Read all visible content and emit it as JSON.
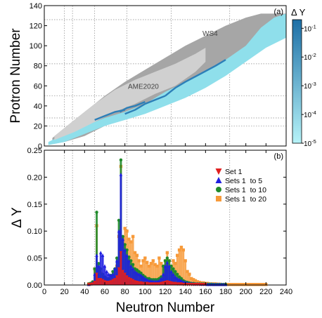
{
  "chart_data": [
    {
      "type": "heatmap",
      "panel_label": "(a)",
      "ylabel": "Protron Number",
      "xlim": [
        0,
        240
      ],
      "ylim": [
        0,
        140
      ],
      "ytick_labels": [
        "0",
        "20",
        "40",
        "60",
        "80",
        "100",
        "120",
        "140"
      ],
      "grid": "dotted",
      "region_labels": [
        "WS4",
        "AME2020"
      ],
      "colorbar": {
        "title": "Δ Y",
        "scale": "log",
        "range": [
          1e-05,
          0.2
        ],
        "tick_labels": [
          "10-1",
          "10-2",
          "10-3",
          "10-4",
          "10-5"
        ],
        "colors": [
          "#b6f3f8",
          "#1d6fa6"
        ]
      },
      "region_colors": {
        "WS4": "#a6a6a6",
        "AME2020": "#d0d0d0",
        "nonzero_dY": "#8fdfeb",
        "large_dY": "#2c7fb8"
      },
      "regions": {
        "WS4_band": {
          "upper": [
            [
              8,
              8
            ],
            [
              20,
              18
            ],
            [
              40,
              34
            ],
            [
              60,
              50
            ],
            [
              80,
              64
            ],
            [
              100,
              76
            ],
            [
              120,
              88
            ],
            [
              140,
              100
            ],
            [
              160,
              110
            ],
            [
              180,
              120
            ],
            [
              200,
              128
            ],
            [
              215,
              132
            ],
            [
              240,
              132
            ]
          ],
          "lower": [
            [
              8,
              2
            ],
            [
              20,
              4
            ],
            [
              40,
              10
            ],
            [
              60,
              20
            ],
            [
              80,
              28
            ],
            [
              100,
              36
            ],
            [
              120,
              46
            ],
            [
              140,
              56
            ],
            [
              160,
              66
            ],
            [
              180,
              78
            ],
            [
              200,
              92
            ],
            [
              220,
              106
            ],
            [
              240,
              118
            ]
          ]
        },
        "AME2020_band": {
          "upper": [
            [
              10,
              10
            ],
            [
              30,
              26
            ],
            [
              50,
              42
            ],
            [
              70,
              56
            ],
            [
              90,
              66
            ],
            [
              110,
              74
            ],
            [
              130,
              82
            ],
            [
              150,
              92
            ],
            [
              160,
              98
            ]
          ],
          "lower": [
            [
              10,
              6
            ],
            [
              30,
              14
            ],
            [
              50,
              24
            ],
            [
              70,
              34
            ],
            [
              90,
              42
            ],
            [
              110,
              52
            ],
            [
              130,
              60
            ],
            [
              150,
              74
            ],
            [
              160,
              84
            ]
          ]
        },
        "sensitivity_band": {
          "upper": [
            [
              4,
              4
            ],
            [
              20,
              12
            ],
            [
              40,
              20
            ],
            [
              60,
              28
            ],
            [
              80,
              34
            ],
            [
              100,
              42
            ],
            [
              120,
              54
            ],
            [
              140,
              64
            ],
            [
              160,
              74
            ],
            [
              180,
              86
            ],
            [
              200,
              100
            ],
            [
              215,
              118
            ],
            [
              228,
              128
            ],
            [
              240,
              132
            ]
          ],
          "lower": [
            [
              4,
              1
            ],
            [
              20,
              4
            ],
            [
              40,
              12
            ],
            [
              60,
              20
            ],
            [
              80,
              26
            ],
            [
              100,
              32
            ],
            [
              120,
              40
            ],
            [
              140,
              48
            ],
            [
              160,
              58
            ],
            [
              180,
              70
            ],
            [
              200,
              84
            ],
            [
              220,
              98
            ],
            [
              240,
              108
            ]
          ]
        },
        "high_sensitivity_segments": [
          [
            [
              50,
              26
            ],
            [
              60,
              30
            ],
            [
              70,
              34
            ],
            [
              80,
              36
            ]
          ],
          [
            [
              75,
              34
            ],
            [
              82,
              38
            ],
            [
              90,
              40
            ],
            [
              100,
              44
            ]
          ],
          [
            [
              80,
              32
            ],
            [
              90,
              36
            ],
            [
              100,
              42
            ],
            [
              110,
              46
            ],
            [
              120,
              50
            ]
          ],
          [
            [
              120,
              50
            ],
            [
              130,
              58
            ],
            [
              140,
              64
            ],
            [
              155,
              72
            ],
            [
              170,
              80
            ],
            [
              180,
              86
            ]
          ]
        ]
      }
    },
    {
      "type": "bar",
      "panel_label": "(b)",
      "xlabel": "Neutron Number",
      "ylabel": "Δ Y",
      "xlim": [
        0,
        240
      ],
      "ylim": [
        0,
        0.25
      ],
      "xtick_labels": [
        "0",
        "20",
        "40",
        "60",
        "80",
        "100",
        "120",
        "140",
        "160",
        "180",
        "200",
        "220",
        "240"
      ],
      "ytick_labels": [
        "0.00",
        "0.05",
        "0.10",
        "0.15",
        "0.20",
        "0.25"
      ],
      "grid": "dotted",
      "legend_position": "top-right",
      "series": [
        {
          "name": "Sets 1  to 20",
          "color": "#f79a3a",
          "marker": "square",
          "x": [
            44,
            46,
            48,
            50,
            52,
            54,
            56,
            58,
            60,
            62,
            64,
            66,
            68,
            70,
            72,
            74,
            76,
            78,
            80,
            82,
            84,
            86,
            88,
            90,
            92,
            94,
            96,
            98,
            100,
            102,
            104,
            106,
            108,
            110,
            112,
            114,
            116,
            118,
            120,
            122,
            124,
            126,
            128,
            130,
            132,
            134,
            136,
            138,
            140,
            142,
            144,
            146,
            148,
            150,
            152,
            154,
            156,
            158,
            160,
            162,
            164,
            166,
            168,
            170,
            172,
            174,
            176,
            178,
            180,
            182,
            184,
            186,
            188,
            190,
            192,
            194,
            196,
            198,
            200,
            202,
            204,
            206,
            208,
            210,
            212,
            214,
            216,
            218,
            220
          ],
          "values": [
            0.002,
            0.003,
            0.005,
            0.03,
            0.11,
            0.028,
            0.022,
            0.015,
            0.012,
            0.01,
            0.008,
            0.007,
            0.012,
            0.02,
            0.035,
            0.09,
            0.22,
            0.085,
            0.105,
            0.1,
            0.085,
            0.08,
            0.09,
            0.06,
            0.055,
            0.045,
            0.035,
            0.045,
            0.05,
            0.042,
            0.035,
            0.04,
            0.045,
            0.038,
            0.035,
            0.05,
            0.04,
            0.035,
            0.045,
            0.06,
            0.045,
            0.035,
            0.045,
            0.04,
            0.055,
            0.065,
            0.07,
            0.065,
            0.045,
            0.025,
            0.02,
            0.012,
            0.01,
            0.008,
            0.006,
            0.005,
            0.004,
            0.004,
            0.003,
            0.003,
            0.002,
            0.002,
            0.002,
            0.002,
            0.0015,
            0.0015,
            0.001,
            0.001,
            0.001,
            0.001,
            0.001,
            0.001,
            0.001,
            0.001,
            0.001,
            0.001,
            0.001,
            0.001,
            0.001,
            0.001,
            0.001,
            0.001,
            0.001,
            0.001,
            0.001,
            0.001,
            0.001,
            0.001,
            0.001
          ]
        },
        {
          "name": "Sets 1  to 10",
          "color": "#1f8a2a",
          "marker": "circle",
          "x": [
            44,
            46,
            48,
            50,
            52,
            54,
            56,
            58,
            60,
            62,
            64,
            66,
            68,
            70,
            72,
            74,
            76,
            78,
            80,
            82,
            84,
            86,
            88,
            90,
            92,
            94,
            96,
            98,
            100,
            102,
            104,
            106,
            108,
            110,
            112,
            114,
            116,
            118,
            120,
            122,
            124,
            126,
            128,
            130,
            132,
            134,
            136,
            138,
            140,
            142,
            144,
            146,
            148,
            150,
            152,
            154,
            156,
            158,
            160,
            162,
            164,
            166,
            168,
            170,
            172,
            174,
            176,
            178,
            180
          ],
          "values": [
            0.002,
            0.003,
            0.006,
            0.03,
            0.135,
            0.04,
            0.03,
            0.02,
            0.015,
            0.012,
            0.012,
            0.018,
            0.025,
            0.03,
            0.05,
            0.12,
            0.232,
            0.09,
            0.075,
            0.065,
            0.052,
            0.045,
            0.038,
            0.03,
            0.028,
            0.025,
            0.022,
            0.018,
            0.015,
            0.012,
            0.012,
            0.01,
            0.01,
            0.01,
            0.01,
            0.012,
            0.015,
            0.035,
            0.045,
            0.05,
            0.045,
            0.035,
            0.03,
            0.025,
            0.02,
            0.015,
            0.012,
            0.008,
            0.006,
            0.005,
            0.004,
            0.003,
            0.003,
            0.002,
            0.002,
            0.002,
            0.002,
            0.002,
            0.002,
            0.0015,
            0.0015,
            0.0015,
            0.001,
            0.001,
            0.001,
            0.001,
            0.001,
            0.001,
            0.001
          ]
        },
        {
          "name": "Sets 1  to 5",
          "color": "#1f1fe0",
          "marker": "triangle-up",
          "x": [
            44,
            46,
            48,
            50,
            52,
            54,
            56,
            58,
            60,
            62,
            64,
            66,
            68,
            70,
            72,
            74,
            76,
            78,
            80,
            82,
            84,
            86,
            88,
            90,
            92,
            94,
            96,
            98,
            100,
            102,
            104,
            106,
            108,
            110,
            112,
            114,
            116,
            118,
            120,
            122,
            124,
            126,
            128,
            130,
            132,
            134,
            136,
            138,
            140,
            142,
            144,
            146,
            148,
            150,
            152,
            154,
            156,
            158,
            160,
            162,
            164,
            166,
            168,
            170,
            172,
            174,
            176,
            178,
            180
          ],
          "values": [
            0.001,
            0.002,
            0.004,
            0.02,
            0.055,
            0.035,
            0.06,
            0.055,
            0.035,
            0.025,
            0.02,
            0.018,
            0.02,
            0.03,
            0.045,
            0.1,
            0.205,
            0.085,
            0.065,
            0.055,
            0.045,
            0.035,
            0.03,
            0.025,
            0.022,
            0.02,
            0.018,
            0.015,
            0.012,
            0.01,
            0.008,
            0.008,
            0.007,
            0.007,
            0.007,
            0.008,
            0.012,
            0.02,
            0.035,
            0.042,
            0.035,
            0.025,
            0.02,
            0.015,
            0.012,
            0.01,
            0.008,
            0.006,
            0.005,
            0.004,
            0.003,
            0.003,
            0.002,
            0.002,
            0.002,
            0.002,
            0.0015,
            0.0015,
            0.0015,
            0.001,
            0.001,
            0.001,
            0.001,
            0.001,
            0.001,
            0.001,
            0.001,
            0.001,
            0.001
          ]
        },
        {
          "name": "Set 1",
          "color": "#e01f1f",
          "marker": "triangle-down",
          "x": [
            44,
            46,
            48,
            50,
            52,
            54,
            56,
            58,
            60,
            62,
            64,
            66,
            68,
            70,
            72,
            74,
            76,
            78,
            80,
            82,
            84,
            86,
            88,
            90,
            92,
            94,
            96,
            98,
            100,
            102,
            104,
            106,
            108,
            110,
            112,
            114,
            116,
            118,
            120,
            122,
            124,
            126,
            128,
            130,
            132,
            134,
            136,
            138,
            140,
            142,
            144,
            146,
            148,
            150,
            152,
            154,
            156,
            158,
            160
          ],
          "values": [
            0.001,
            0.001,
            0.002,
            0.005,
            0.02,
            0.01,
            0.01,
            0.008,
            0.006,
            0.005,
            0.005,
            0.006,
            0.008,
            0.01,
            0.015,
            0.03,
            0.06,
            0.025,
            0.02,
            0.015,
            0.012,
            0.01,
            0.008,
            0.006,
            0.005,
            0.004,
            0.004,
            0.003,
            0.003,
            0.003,
            0.002,
            0.002,
            0.002,
            0.002,
            0.002,
            0.002,
            0.003,
            0.004,
            0.005,
            0.006,
            0.005,
            0.004,
            0.003,
            0.003,
            0.002,
            0.002,
            0.002,
            0.001,
            0.001,
            0.001,
            0.001,
            0.001,
            0.001,
            0.001,
            0.001,
            0.001,
            0.001,
            0.001,
            0.001
          ]
        }
      ]
    }
  ]
}
